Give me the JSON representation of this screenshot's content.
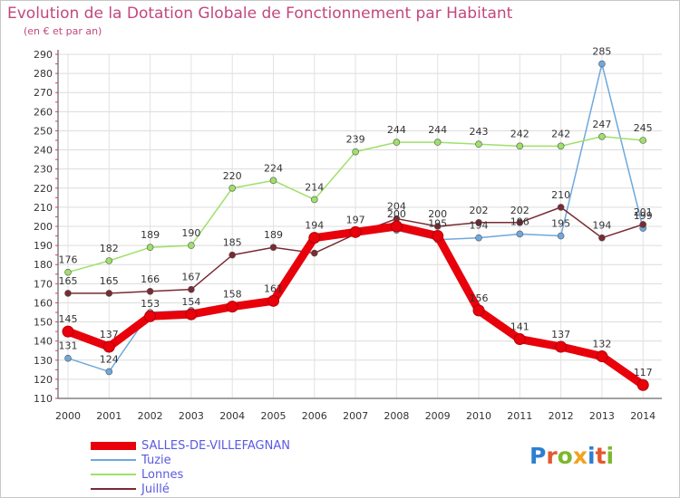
{
  "title": "Evolution de la Dotation Globale de Fonctionnement par Habitant",
  "subtitle": "(en € et par an)",
  "logo": {
    "text": "Proxiti",
    "colors": [
      "#2d7fd1",
      "#e4572e",
      "#7cb82f",
      "#f2a21d",
      "#2d7fd1",
      "#e4572e",
      "#7cb82f"
    ]
  },
  "chart_data": {
    "type": "line",
    "x": [
      2000,
      2001,
      2002,
      2003,
      2004,
      2005,
      2006,
      2007,
      2008,
      2009,
      2010,
      2011,
      2012,
      2013,
      2014
    ],
    "yticks": [
      110,
      120,
      130,
      140,
      150,
      160,
      170,
      180,
      190,
      200,
      210,
      220,
      230,
      240,
      250,
      260,
      270,
      280,
      290
    ],
    "ylim": [
      110,
      290
    ],
    "grid": true,
    "legend_position": "bottom-left",
    "series": [
      {
        "name": "SALLES-DE-VILLEFAGNAN",
        "color": "#e8000b",
        "values": [
          145,
          137,
          153,
          154,
          158,
          161,
          194,
          197,
          200,
          195,
          156,
          141,
          137,
          132,
          117
        ],
        "labels": [
          "145",
          "137",
          "153",
          "154",
          "158",
          "161",
          "194",
          "197",
          "200",
          "195",
          "156",
          "141",
          "137",
          "132",
          "117"
        ]
      },
      {
        "name": "Tuzie",
        "color": "#6fa8dc",
        "values": [
          131,
          124,
          155,
          156,
          157,
          160,
          193,
          198,
          198,
          193,
          194,
          196,
          195,
          285,
          199
        ],
        "labels": [
          "131",
          "124",
          "",
          "",
          "",
          "",
          "",
          "",
          "",
          "",
          "194",
          "196",
          "195",
          "285",
          "199"
        ]
      },
      {
        "name": "Lonnes",
        "color": "#9ee069",
        "values": [
          176,
          182,
          189,
          190,
          220,
          224,
          214,
          239,
          244,
          244,
          243,
          242,
          242,
          247,
          245
        ],
        "labels": [
          "176",
          "182",
          "189",
          "190",
          "220",
          "224",
          "214",
          "239",
          "244",
          "244",
          "243",
          "242",
          "242",
          "247",
          "245"
        ]
      },
      {
        "name": "Juillé",
        "color": "#7a2a33",
        "values": [
          165,
          165,
          166,
          167,
          185,
          189,
          186,
          196,
          204,
          200,
          202,
          202,
          210,
          194,
          201
        ],
        "labels": [
          "165",
          "165",
          "166",
          "167",
          "185",
          "189",
          "",
          "",
          "204",
          "200",
          "202",
          "202",
          "210",
          "194",
          "201"
        ]
      }
    ]
  }
}
